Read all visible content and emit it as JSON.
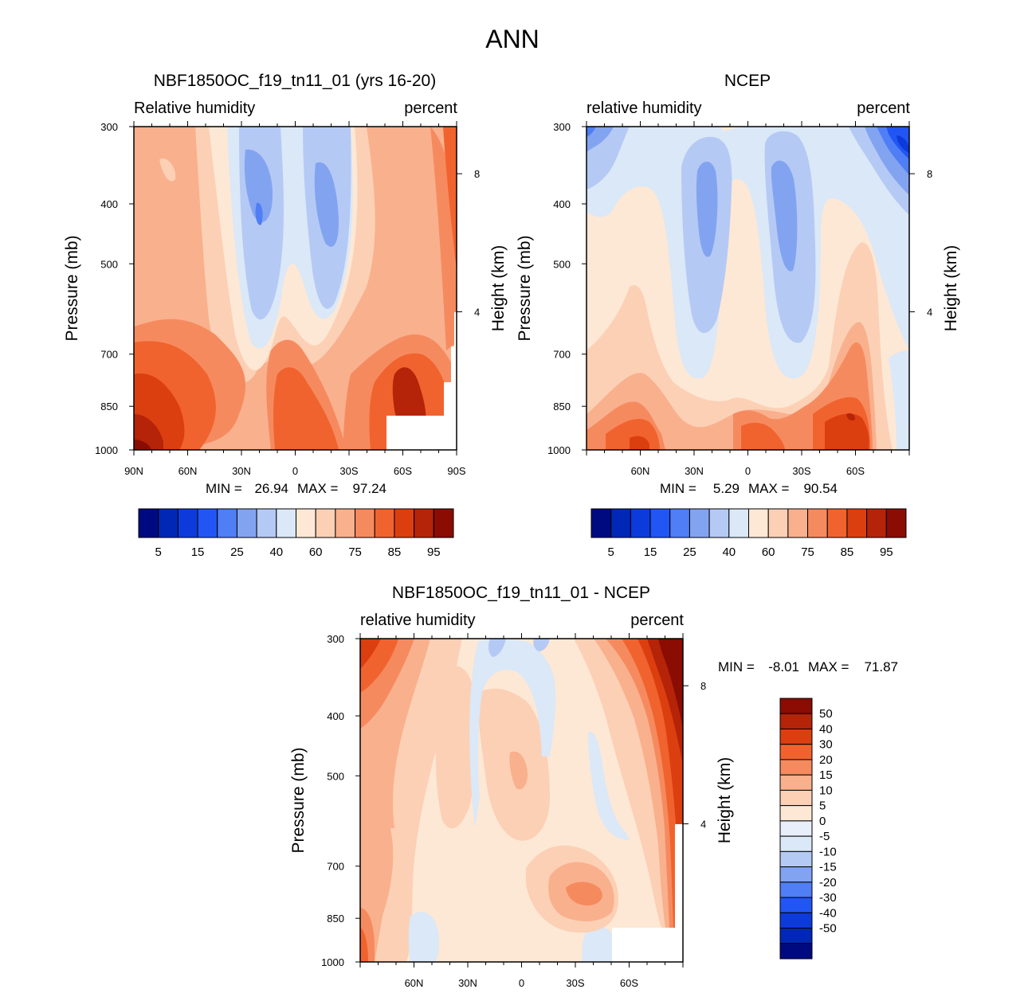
{
  "figure": {
    "title": "ANN"
  },
  "chart_data": [
    {
      "type": "heatmap",
      "id": "model",
      "title": "NBF1850OC_f19_tn11_01 (yrs 16-20)",
      "left_label": "Relative humidity",
      "right_label": "percent",
      "ylabel": "Pressure (mb)",
      "ylabel_right": "Height (km)",
      "x_ticks": [
        "90N",
        "60N",
        "30N",
        "0",
        "30S",
        "60S",
        "90S"
      ],
      "x_range": [
        90,
        -90
      ],
      "y_ticks": [
        "300",
        "400",
        "500",
        "700",
        "850",
        "1000"
      ],
      "y_range": [
        300,
        1000
      ],
      "height_ticks": [
        "8",
        "4"
      ],
      "stats": {
        "min_label": "MIN =",
        "min": "26.94",
        "max_label": "MAX =",
        "max": "97.24"
      },
      "colorbar": {
        "orientation": "horizontal",
        "colors": [
          "#000a80",
          "#0027b5",
          "#0d3bdb",
          "#2156f5",
          "#4f7ef5",
          "#82a4f0",
          "#b5c9f5",
          "#dae8f7",
          "#fde8d5",
          "#fcd0b5",
          "#f9b08d",
          "#f68a5f",
          "#f1632e",
          "#dc3f0f",
          "#b52408",
          "#8a0c02"
        ],
        "labels": [
          "5",
          "15",
          "25",
          "40",
          "60",
          "75",
          "85",
          "95"
        ]
      }
    },
    {
      "type": "heatmap",
      "id": "obs",
      "title": "NCEP",
      "left_label": "relative humidity",
      "right_label": "percent",
      "ylabel": "Pressure (mb)",
      "ylabel_right": "Height (km)",
      "x_ticks": [
        "60N",
        "30N",
        "0",
        "30S",
        "60S"
      ],
      "y_ticks": [
        "300",
        "400",
        "500",
        "700",
        "850",
        "1000"
      ],
      "y_range": [
        300,
        1000
      ],
      "height_ticks": [
        "8",
        "4"
      ],
      "stats": {
        "min_label": "MIN =",
        "min": "5.29",
        "max_label": "MAX =",
        "max": "90.54"
      },
      "colorbar": {
        "orientation": "horizontal",
        "colors": [
          "#000a80",
          "#0027b5",
          "#0d3bdb",
          "#2156f5",
          "#4f7ef5",
          "#82a4f0",
          "#b5c9f5",
          "#dae8f7",
          "#fde8d5",
          "#fcd0b5",
          "#f9b08d",
          "#f68a5f",
          "#f1632e",
          "#dc3f0f",
          "#b52408",
          "#8a0c02"
        ],
        "labels": [
          "5",
          "15",
          "25",
          "40",
          "60",
          "75",
          "85",
          "95"
        ]
      }
    },
    {
      "type": "heatmap",
      "id": "diff",
      "title": "NBF1850OC_f19_tn11_01 - NCEP",
      "left_label": "relative humidity",
      "right_label": "percent",
      "ylabel": "Pressure (mb)",
      "ylabel_right": "Height (km)",
      "x_ticks": [
        "60N",
        "30N",
        "0",
        "30S",
        "60S"
      ],
      "y_ticks": [
        "300",
        "400",
        "500",
        "700",
        "850",
        "1000"
      ],
      "y_range": [
        300,
        1000
      ],
      "height_ticks": [
        "8",
        "4"
      ],
      "stats": {
        "min_label": "MIN =",
        "min": "-8.01",
        "max_label": "MAX =",
        "max": "71.87"
      },
      "colorbar": {
        "orientation": "vertical",
        "colors": [
          "#8a0c02",
          "#b52408",
          "#dc3f0f",
          "#f1632e",
          "#f68a5f",
          "#f9b08d",
          "#fcd0b5",
          "#fde8d5",
          "#e8eefa",
          "#dae8f7",
          "#b5c9f5",
          "#82a4f0",
          "#4f7ef5",
          "#2156f5",
          "#0d3bdb",
          "#0027b5",
          "#000a80"
        ],
        "labels": [
          "50",
          "40",
          "30",
          "20",
          "15",
          "10",
          "5",
          "0",
          "-5",
          "-10",
          "-15",
          "-20",
          "-30",
          "-40",
          "-50"
        ]
      }
    }
  ]
}
